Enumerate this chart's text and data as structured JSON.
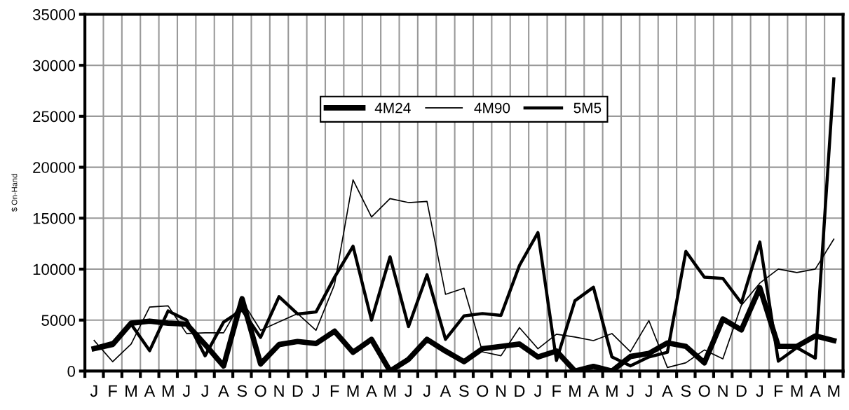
{
  "chart_data": {
    "type": "line",
    "ylabel": "$ On-Hand",
    "categories": [
      "J",
      "F",
      "M",
      "A",
      "M",
      "J",
      "J",
      "A",
      "S",
      "O",
      "N",
      "D",
      "J",
      "F",
      "M",
      "A",
      "M",
      "J",
      "J",
      "A",
      "S",
      "O",
      "N",
      "D",
      "J",
      "F",
      "M",
      "A",
      "M",
      "J",
      "J",
      "A",
      "S",
      "O",
      "N",
      "D",
      "J",
      "F",
      "M",
      "A",
      "M"
    ],
    "series": [
      {
        "name": "4M24",
        "color": "#000000",
        "values": [
          2200,
          2600,
          4700,
          4900,
          4700,
          4600,
          2600,
          500,
          7100,
          700,
          2600,
          2900,
          2700,
          3910,
          1840,
          3110,
          0,
          1150,
          3110,
          1960,
          920,
          2190,
          2420,
          2650,
          1380,
          1960,
          0,
          460,
          0,
          1430,
          1730,
          2760,
          2420,
          810,
          5110,
          4030,
          8170,
          2420,
          2420,
          3450,
          2990
        ]
      },
      {
        "name": "4M90",
        "color": "#000000",
        "values": [
          3000,
          920,
          2650,
          6280,
          6400,
          3680,
          3750,
          3750,
          6900,
          4000,
          4830,
          5640,
          4000,
          8500,
          18760,
          15120,
          16920,
          16530,
          16640,
          7530,
          8130,
          1890,
          1500,
          4260,
          2190,
          3610,
          3340,
          2990,
          3680,
          1890,
          4950,
          350,
          810,
          2070,
          1200,
          6450,
          8630,
          10010,
          9670,
          10010,
          12940
        ]
      },
      {
        "name": "5M5",
        "color": "#000000",
        "values": [
          2300,
          2800,
          4600,
          2000,
          5900,
          5000,
          1500,
          4800,
          6000,
          3300,
          7300,
          5600,
          5800,
          9200,
          12250,
          5000,
          11210,
          4370,
          9440,
          3110,
          5410,
          5640,
          5460,
          10360,
          13580,
          1040,
          6900,
          8220,
          1380,
          510,
          1380,
          1840,
          11740,
          9210,
          9090,
          6680,
          12660,
          970,
          2300,
          1270,
          28660
        ]
      }
    ],
    "ylim": [
      0,
      35000
    ],
    "yticks": [
      0,
      5000,
      10000,
      15000,
      20000,
      25000,
      30000,
      35000
    ],
    "grid": true,
    "legend": "top"
  }
}
